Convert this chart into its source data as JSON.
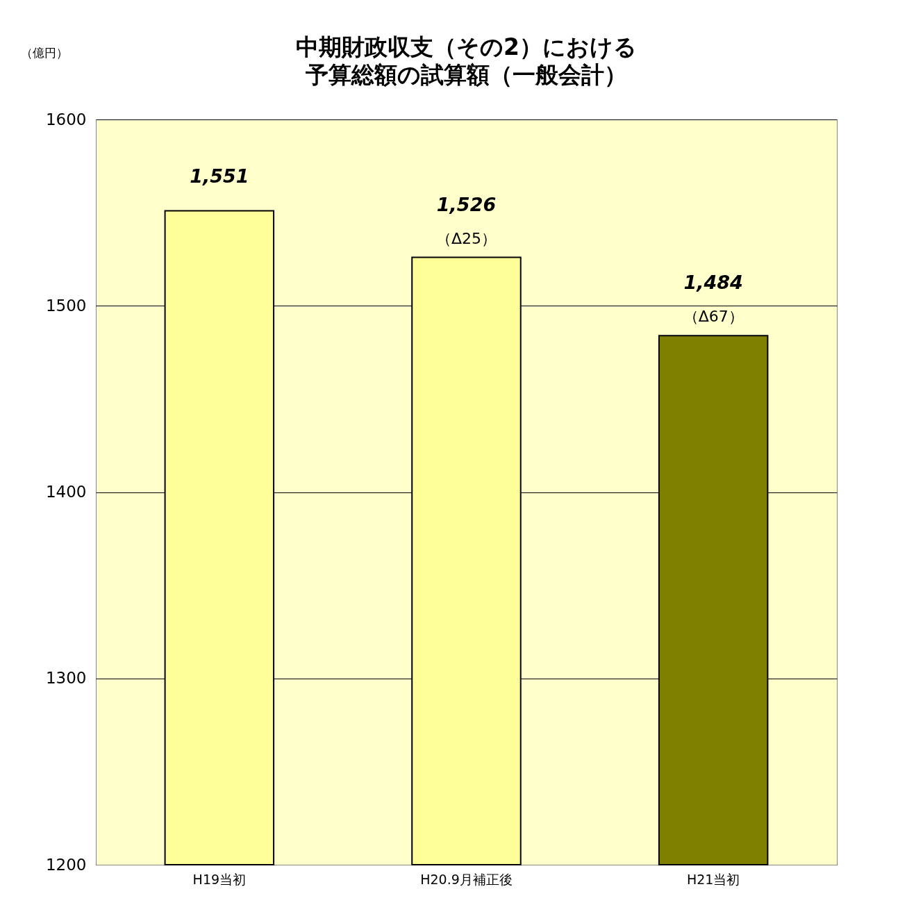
{
  "chart_data": {
    "type": "bar",
    "title": "中期財政収支（その2）における予算総額の試算額（一般会計）",
    "categories": [
      "H19当初",
      "H20.9月補正後",
      "H21当初"
    ],
    "values": [
      1551,
      1526,
      1484
    ],
    "colors": [
      "#ffff99",
      "#ffff99",
      "#808000"
    ],
    "value_labels": [
      "1,551",
      "1,526",
      "1,484"
    ],
    "annotations": [
      "（億円）",
      {
        "text": "（Δ25）",
        "x": "H20.9月補正後",
        "y": 1526
      },
      {
        "text": "（Δ67）",
        "x": "H21当初",
        "y": 1484
      }
    ],
    "ylim": [
      1200,
      1600
    ],
    "yticks": [
      1200,
      1300,
      1400,
      1500,
      1600
    ],
    "grid": "y"
  }
}
